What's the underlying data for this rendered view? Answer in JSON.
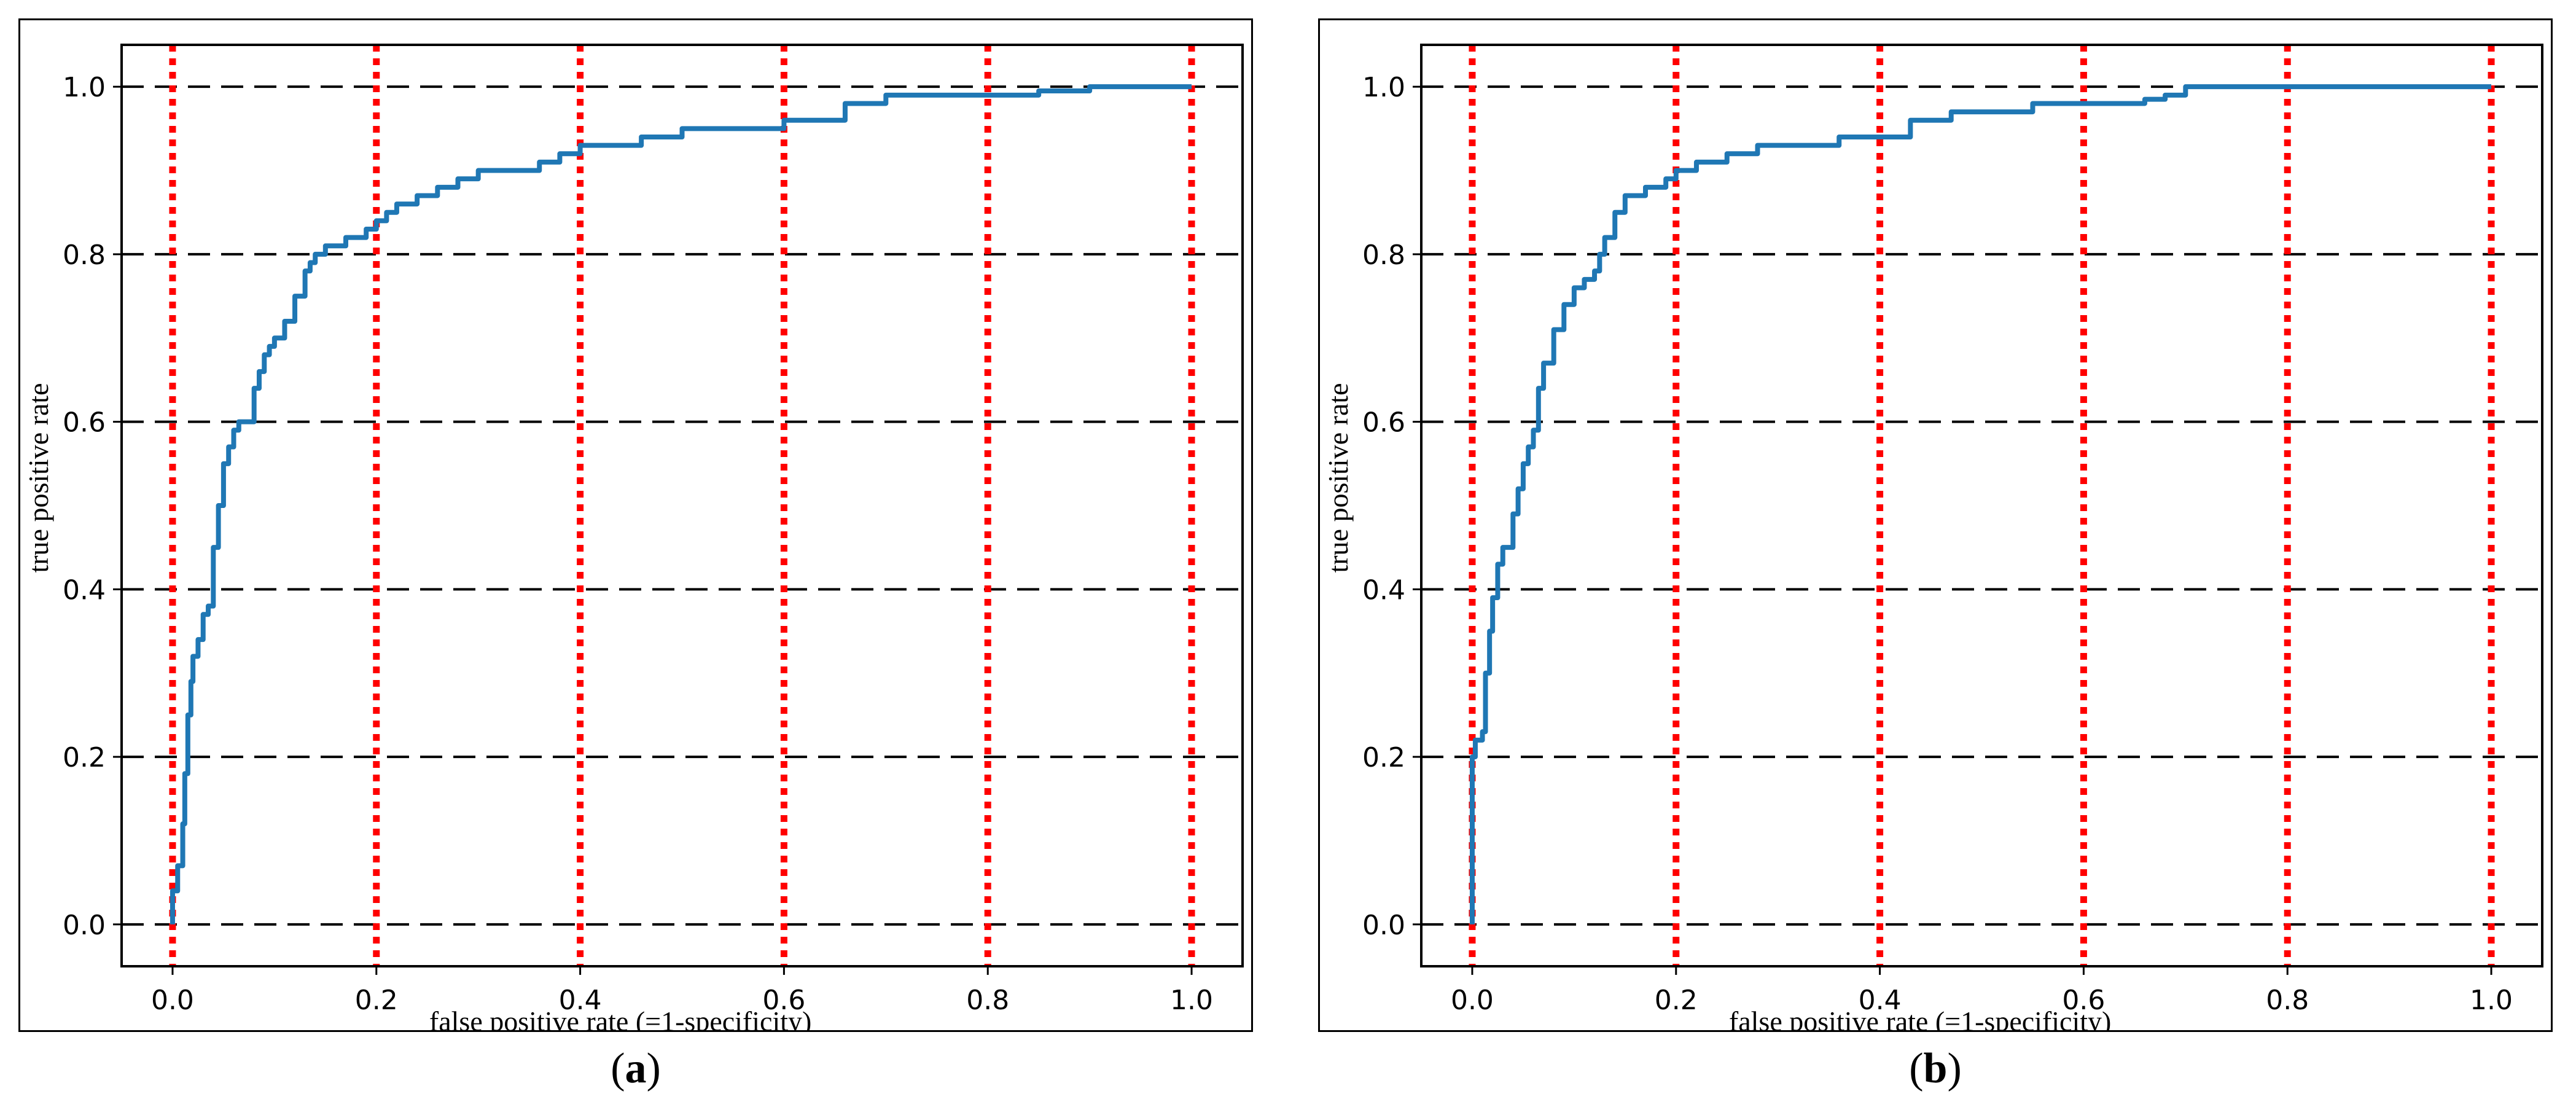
{
  "panels": [
    {
      "paren_open": "(",
      "letter": "a",
      "paren_close": ")"
    },
    {
      "paren_open": "(",
      "letter": "b",
      "paren_close": ")"
    }
  ],
  "colors": {
    "curve": "#1f77b4",
    "vgrid": "#ff0000",
    "hgrid": "#000000",
    "axes": "#000000"
  },
  "chart_data": [
    {
      "type": "line",
      "panel": "a",
      "xlabel": "false positive rate (=1-specificity)",
      "ylabel": "true positive rate",
      "xlim": [
        -0.05,
        1.05
      ],
      "ylim": [
        -0.05,
        1.05
      ],
      "xticks": [
        "0.0",
        "0.2",
        "0.4",
        "0.6",
        "0.8",
        "1.0"
      ],
      "yticks": [
        "0.0",
        "0.2",
        "0.4",
        "0.6",
        "0.8",
        "1.0"
      ],
      "grid": {
        "vertical": "red dotted",
        "horizontal": "black dashed"
      },
      "series": [
        {
          "x": [
            0.0,
            0.0,
            0.005,
            0.01,
            0.012,
            0.015,
            0.018,
            0.02,
            0.025,
            0.03,
            0.035,
            0.04,
            0.045,
            0.05,
            0.055,
            0.06,
            0.065,
            0.07,
            0.08,
            0.085,
            0.09,
            0.095,
            0.1,
            0.11,
            0.12,
            0.13,
            0.135,
            0.14,
            0.15,
            0.16,
            0.17,
            0.18,
            0.19,
            0.2,
            0.21,
            0.22,
            0.24,
            0.26,
            0.28,
            0.3,
            0.33,
            0.36,
            0.38,
            0.4,
            0.43,
            0.46,
            0.5,
            0.55,
            0.6,
            0.63,
            0.66,
            0.7,
            0.75,
            0.8,
            0.85,
            0.9,
            0.95,
            1.0
          ],
          "y": [
            0.0,
            0.04,
            0.07,
            0.12,
            0.18,
            0.25,
            0.29,
            0.32,
            0.34,
            0.37,
            0.38,
            0.45,
            0.5,
            0.55,
            0.57,
            0.59,
            0.6,
            0.6,
            0.64,
            0.66,
            0.68,
            0.69,
            0.7,
            0.72,
            0.75,
            0.78,
            0.79,
            0.8,
            0.81,
            0.81,
            0.82,
            0.82,
            0.83,
            0.84,
            0.85,
            0.86,
            0.87,
            0.88,
            0.89,
            0.9,
            0.9,
            0.91,
            0.92,
            0.93,
            0.93,
            0.94,
            0.95,
            0.95,
            0.96,
            0.96,
            0.98,
            0.99,
            0.99,
            0.99,
            0.995,
            1.0,
            1.0,
            1.0
          ]
        }
      ]
    },
    {
      "type": "line",
      "panel": "b",
      "xlabel": "false positive rate (=1-specificity)",
      "ylabel": "true positive rate",
      "xlim": [
        -0.05,
        1.05
      ],
      "ylim": [
        -0.05,
        1.05
      ],
      "xticks": [
        "0.0",
        "0.2",
        "0.4",
        "0.6",
        "0.8",
        "1.0"
      ],
      "yticks": [
        "0.0",
        "0.2",
        "0.4",
        "0.6",
        "0.8",
        "1.0"
      ],
      "grid": {
        "vertical": "red dotted",
        "horizontal": "black dashed"
      },
      "series": [
        {
          "x": [
            0.0,
            0.0,
            0.0,
            0.003,
            0.01,
            0.013,
            0.017,
            0.02,
            0.025,
            0.03,
            0.04,
            0.045,
            0.05,
            0.055,
            0.06,
            0.065,
            0.07,
            0.08,
            0.09,
            0.1,
            0.11,
            0.12,
            0.125,
            0.13,
            0.14,
            0.15,
            0.17,
            0.19,
            0.2,
            0.22,
            0.25,
            0.28,
            0.32,
            0.36,
            0.4,
            0.43,
            0.47,
            0.5,
            0.55,
            0.6,
            0.63,
            0.66,
            0.68,
            0.7,
            0.75,
            0.8,
            0.85,
            0.9,
            0.95,
            1.0
          ],
          "y": [
            0.0,
            0.1,
            0.2,
            0.22,
            0.23,
            0.3,
            0.35,
            0.39,
            0.43,
            0.45,
            0.49,
            0.52,
            0.55,
            0.57,
            0.59,
            0.64,
            0.67,
            0.71,
            0.74,
            0.76,
            0.77,
            0.78,
            0.8,
            0.82,
            0.85,
            0.87,
            0.88,
            0.89,
            0.9,
            0.91,
            0.92,
            0.93,
            0.93,
            0.94,
            0.94,
            0.96,
            0.97,
            0.97,
            0.98,
            0.98,
            0.98,
            0.985,
            0.99,
            1.0,
            1.0,
            1.0,
            1.0,
            1.0,
            1.0,
            1.0
          ]
        }
      ]
    }
  ]
}
